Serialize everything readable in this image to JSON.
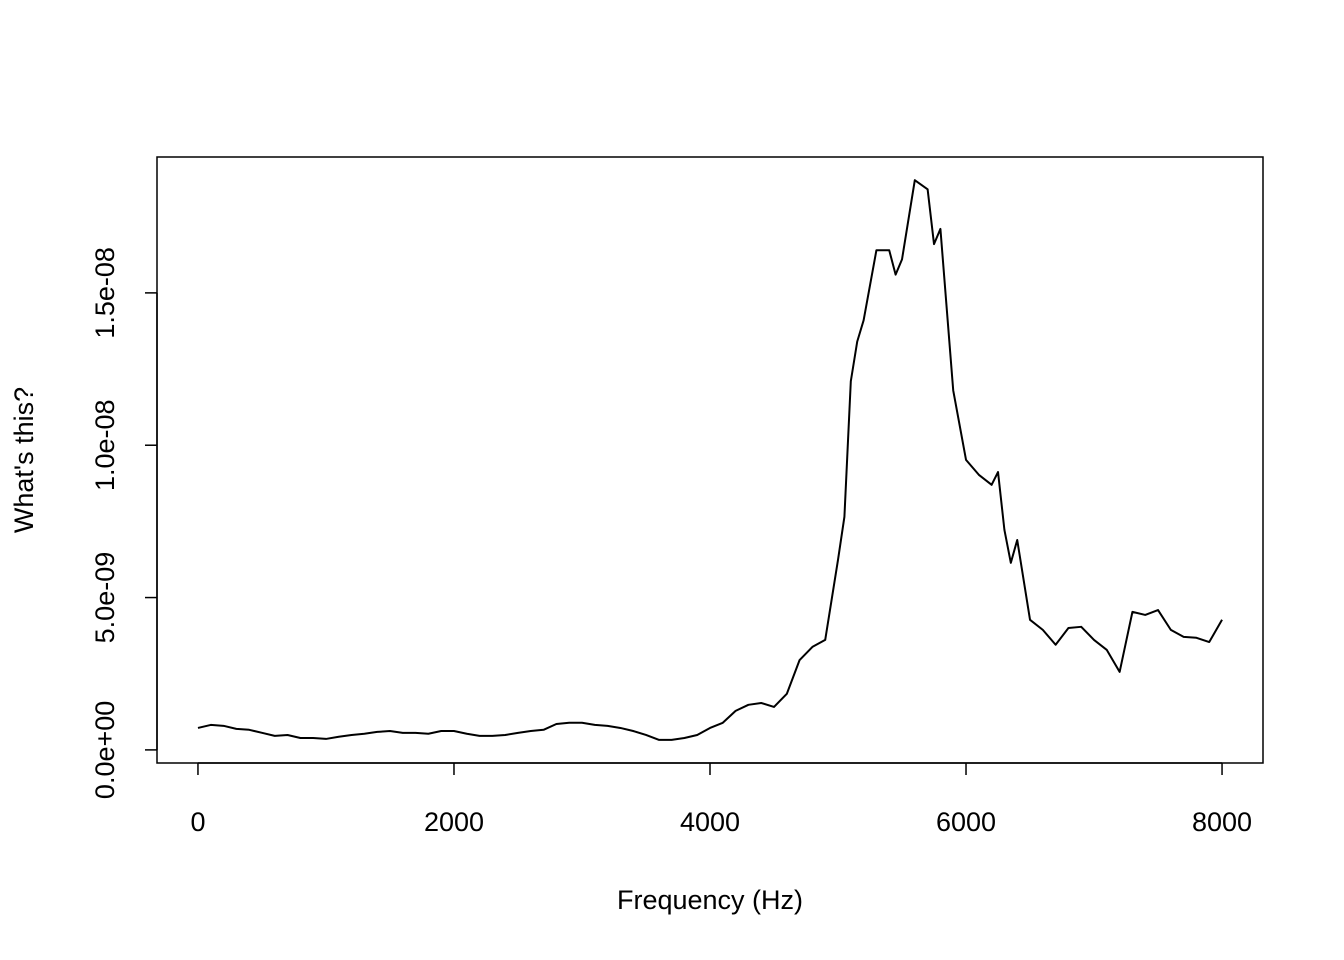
{
  "chart_data": {
    "type": "line",
    "x_label": "Frequency (Hz)",
    "y_label": "What's this?",
    "x": [
      0,
      100,
      200,
      300,
      400,
      500,
      600,
      700,
      800,
      900,
      1000,
      1100,
      1200,
      1300,
      1400,
      1500,
      1600,
      1700,
      1800,
      1900,
      2000,
      2100,
      2200,
      2300,
      2400,
      2500,
      2600,
      2700,
      2800,
      2900,
      3000,
      3100,
      3200,
      3300,
      3400,
      3500,
      3600,
      3700,
      3800,
      3900,
      4000,
      4100,
      4200,
      4300,
      4400,
      4500,
      4600,
      4700,
      4800,
      4900,
      5000,
      5050,
      5100,
      5150,
      5200,
      5300,
      5400,
      5450,
      5500,
      5600,
      5700,
      5750,
      5800,
      5900,
      6000,
      6100,
      6200,
      6250,
      6300,
      6350,
      6400,
      6500,
      6600,
      6700,
      6800,
      6900,
      7000,
      7100,
      7200,
      7300,
      7400,
      7500,
      7600,
      7700,
      7800,
      7900,
      8000
    ],
    "values": [
      7.2e-10,
      8.2e-10,
      7.9e-10,
      6.9e-10,
      6.6e-10,
      5.6e-10,
      4.6e-10,
      4.9e-10,
      3.9e-10,
      3.9e-10,
      3.6e-10,
      4.3e-10,
      4.9e-10,
      5.3e-10,
      5.9e-10,
      6.2e-10,
      5.6e-10,
      5.6e-10,
      5.3e-10,
      6.2e-10,
      6.2e-10,
      5.3e-10,
      4.6e-10,
      4.6e-10,
      4.9e-10,
      5.6e-10,
      6.2e-10,
      6.6e-10,
      8.5e-10,
      8.9e-10,
      8.9e-10,
      8.2e-10,
      7.9e-10,
      7.2e-10,
      6.2e-10,
      4.9e-10,
      3.3e-10,
      3.3e-10,
      3.9e-10,
      4.9e-10,
      7.2e-10,
      8.9e-10,
      1.28e-09,
      1.48e-09,
      1.54e-09,
      1.41e-09,
      1.84e-09,
      2.95e-09,
      3.38e-09,
      3.61e-09,
      6.24e-09,
      7.65e-09,
      1.21e-08,
      1.34e-08,
      1.41e-08,
      1.64e-08,
      1.64e-08,
      1.56e-08,
      1.61e-08,
      1.87e-08,
      1.84e-08,
      1.66e-08,
      1.71e-08,
      1.18e-08,
      9.52e-09,
      9.03e-09,
      8.7e-09,
      9.12e-09,
      7.22e-09,
      6.14e-09,
      6.89e-09,
      4.27e-09,
      3.94e-09,
      3.45e-09,
      4e-09,
      4.04e-09,
      3.61e-09,
      3.28e-09,
      2.56e-09,
      4.53e-09,
      4.43e-09,
      4.59e-09,
      3.94e-09,
      3.71e-09,
      3.68e-09,
      3.54e-09,
      4.27e-09
    ],
    "color": "#000000",
    "xlim": [
      -320,
      8320
    ],
    "ylim": [
      -4.3e-10,
      1.946e-08
    ],
    "xticks": [
      0,
      2000,
      4000,
      6000,
      8000
    ],
    "yticks": [
      {
        "value": 0,
        "label": "0.0e+00"
      },
      {
        "value": 5e-09,
        "label": "5.0e-09"
      },
      {
        "value": 1e-08,
        "label": "1.0e-08"
      },
      {
        "value": 1.5e-08,
        "label": "1.5e-08"
      }
    ]
  }
}
